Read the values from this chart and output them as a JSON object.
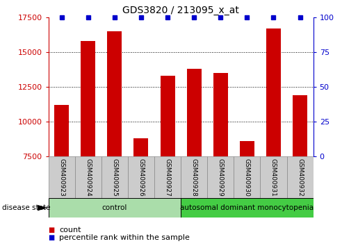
{
  "title": "GDS3820 / 213095_x_at",
  "samples": [
    "GSM400923",
    "GSM400924",
    "GSM400925",
    "GSM400926",
    "GSM400927",
    "GSM400928",
    "GSM400929",
    "GSM400930",
    "GSM400931",
    "GSM400932"
  ],
  "counts": [
    11200,
    15800,
    16500,
    8800,
    13300,
    13800,
    13500,
    8600,
    16700,
    11900
  ],
  "percentiles": [
    100,
    100,
    100,
    100,
    100,
    100,
    100,
    100,
    100,
    100
  ],
  "bar_color": "#cc0000",
  "dot_color": "#0000cc",
  "ylim_left": [
    7500,
    17500
  ],
  "ylim_right": [
    0,
    100
  ],
  "yticks_left": [
    7500,
    10000,
    12500,
    15000,
    17500
  ],
  "yticks_right": [
    0,
    25,
    50,
    75,
    100
  ],
  "groups": [
    {
      "label": "control",
      "indices": [
        0,
        1,
        2,
        3,
        4
      ],
      "color": "#aaddaa"
    },
    {
      "label": "autosomal dominant monocytopenia",
      "indices": [
        5,
        6,
        7,
        8,
        9
      ],
      "color": "#44cc44"
    }
  ],
  "disease_state_label": "disease state",
  "legend_count_label": "count",
  "legend_pct_label": "percentile rank within the sample",
  "tick_color_left": "#cc0000",
  "tick_color_right": "#0000cc",
  "xlabel_area_color": "#cccccc",
  "xlabel_border_color": "#888888"
}
